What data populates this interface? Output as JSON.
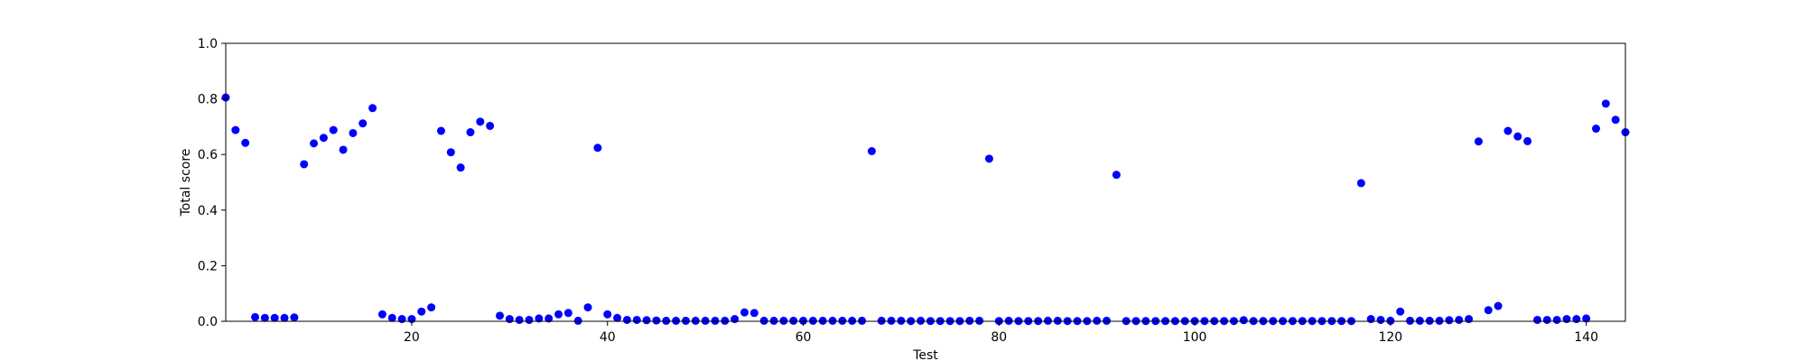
{
  "chart_data": {
    "type": "scatter",
    "title": "",
    "xlabel": "Test",
    "ylabel": "Total score",
    "xlim": [
      1,
      144
    ],
    "ylim": [
      0.0,
      1.0
    ],
    "xticks": [
      20,
      40,
      60,
      80,
      100,
      120,
      140
    ],
    "xtick_labels": [
      "20",
      "40",
      "60",
      "80",
      "100",
      "120",
      "140"
    ],
    "yticks": [
      0.0,
      0.2,
      0.4,
      0.6,
      0.8,
      1.0
    ],
    "ytick_labels": [
      "0.0",
      "0.2",
      "0.4",
      "0.6",
      "0.8",
      "1.0"
    ],
    "grid": false,
    "legend": "none",
    "marker_color": "#0000ff",
    "series": [
      {
        "x": [
          1,
          2,
          3,
          4,
          5,
          6,
          7,
          8,
          9,
          10,
          11,
          12,
          13,
          14,
          15,
          16,
          17,
          18,
          19,
          20,
          21,
          22,
          23,
          24,
          25,
          26,
          27,
          28,
          29,
          30,
          31,
          32,
          33,
          34,
          35,
          36,
          37,
          38,
          39,
          40,
          41,
          42,
          43,
          44,
          45,
          46,
          47,
          48,
          49,
          50,
          51,
          52,
          53,
          54,
          55,
          56,
          57,
          58,
          59,
          60,
          61,
          62,
          63,
          64,
          65,
          66,
          67,
          68,
          69,
          70,
          71,
          72,
          73,
          74,
          75,
          76,
          77,
          78,
          79,
          80,
          81,
          82,
          83,
          84,
          85,
          86,
          87,
          88,
          89,
          90,
          91,
          92,
          93,
          94,
          95,
          96,
          97,
          98,
          99,
          100,
          101,
          102,
          103,
          104,
          105,
          106,
          107,
          108,
          109,
          110,
          111,
          112,
          113,
          114,
          115,
          116,
          117,
          118,
          119,
          120,
          121,
          122,
          123,
          124,
          125,
          126,
          127,
          128,
          129,
          130,
          131,
          132,
          133,
          134,
          135,
          136,
          137,
          138,
          139,
          140,
          141,
          142,
          143,
          144
        ],
        "y": [
          0.805,
          0.688,
          0.642,
          0.015,
          0.012,
          0.012,
          0.012,
          0.014,
          0.565,
          0.64,
          0.66,
          0.688,
          0.617,
          0.677,
          0.712,
          0.767,
          0.025,
          0.012,
          0.008,
          0.008,
          0.035,
          0.05,
          0.685,
          0.608,
          0.553,
          0.68,
          0.718,
          0.703,
          0.02,
          0.008,
          0.005,
          0.005,
          0.01,
          0.01,
          0.025,
          0.03,
          0.002,
          0.05,
          0.624,
          0.025,
          0.012,
          0.005,
          0.005,
          0.004,
          0.003,
          0.002,
          0.002,
          0.002,
          0.002,
          0.002,
          0.002,
          0.002,
          0.008,
          0.032,
          0.03,
          0.002,
          0.002,
          0.002,
          0.002,
          0.002,
          0.002,
          0.002,
          0.002,
          0.002,
          0.002,
          0.002,
          0.612,
          0.002,
          0.002,
          0.002,
          0.001,
          0.002,
          0.001,
          0.001,
          0.001,
          0.001,
          0.002,
          0.002,
          0.585,
          0.001,
          0.002,
          0.001,
          0.001,
          0.001,
          0.002,
          0.002,
          0.001,
          0.001,
          0.001,
          0.002,
          0.002,
          0.527,
          0.001,
          0.001,
          0.001,
          0.001,
          0.001,
          0.001,
          0.001,
          0.001,
          0.001,
          0.001,
          0.001,
          0.001,
          0.004,
          0.001,
          0.001,
          0.001,
          0.001,
          0.001,
          0.001,
          0.001,
          0.001,
          0.001,
          0.001,
          0.001,
          0.497,
          0.008,
          0.005,
          0.002,
          0.035,
          0.002,
          0.002,
          0.002,
          0.002,
          0.004,
          0.005,
          0.008,
          0.647,
          0.04,
          0.055,
          0.685,
          0.665,
          0.648,
          0.005,
          0.005,
          0.005,
          0.008,
          0.008,
          0.01,
          0.693,
          0.783,
          0.725,
          0.68
        ]
      }
    ]
  }
}
